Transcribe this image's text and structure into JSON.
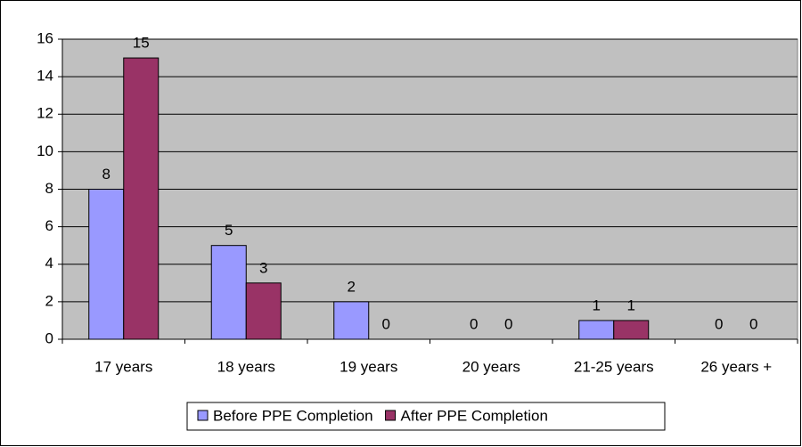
{
  "chart_data": {
    "type": "bar",
    "categories": [
      "17 years",
      "18 years",
      "19 years",
      "20 years",
      "21-25 years",
      "26 years +"
    ],
    "series": [
      {
        "name": "Before PPE Completion",
        "color": "#9999ff",
        "values": [
          8,
          5,
          2,
          0,
          1,
          0
        ]
      },
      {
        "name": "After PPE Completion",
        "color": "#993366",
        "values": [
          15,
          3,
          0,
          0,
          1,
          0
        ]
      }
    ],
    "ylim": [
      0,
      16
    ],
    "yticks": [
      0,
      2,
      4,
      6,
      8,
      10,
      12,
      14,
      16
    ],
    "grid": true,
    "legend": "bottom"
  }
}
